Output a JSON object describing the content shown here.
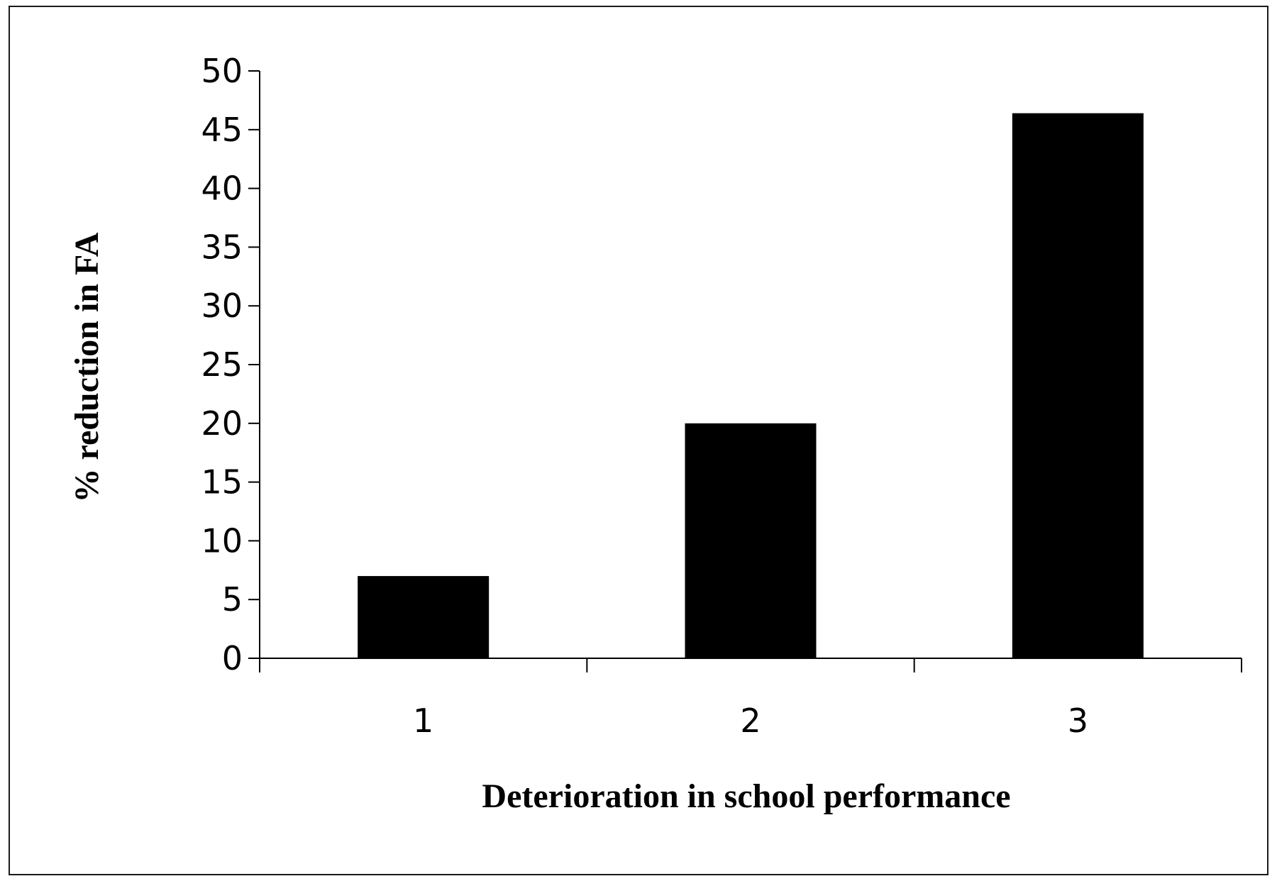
{
  "chart_data": {
    "type": "bar",
    "categories": [
      "1",
      "2",
      "3"
    ],
    "values": [
      7,
      20,
      46.4
    ],
    "title": "",
    "xlabel": "Deterioration in school performance",
    "ylabel": "% reduction in FA",
    "ylim": [
      0,
      50
    ],
    "yticks": [
      "0",
      "5",
      "10",
      "15",
      "20",
      "25",
      "30",
      "35",
      "40",
      "45",
      "50"
    ],
    "grid": false,
    "legend": "none",
    "bar_color": "#000000"
  }
}
